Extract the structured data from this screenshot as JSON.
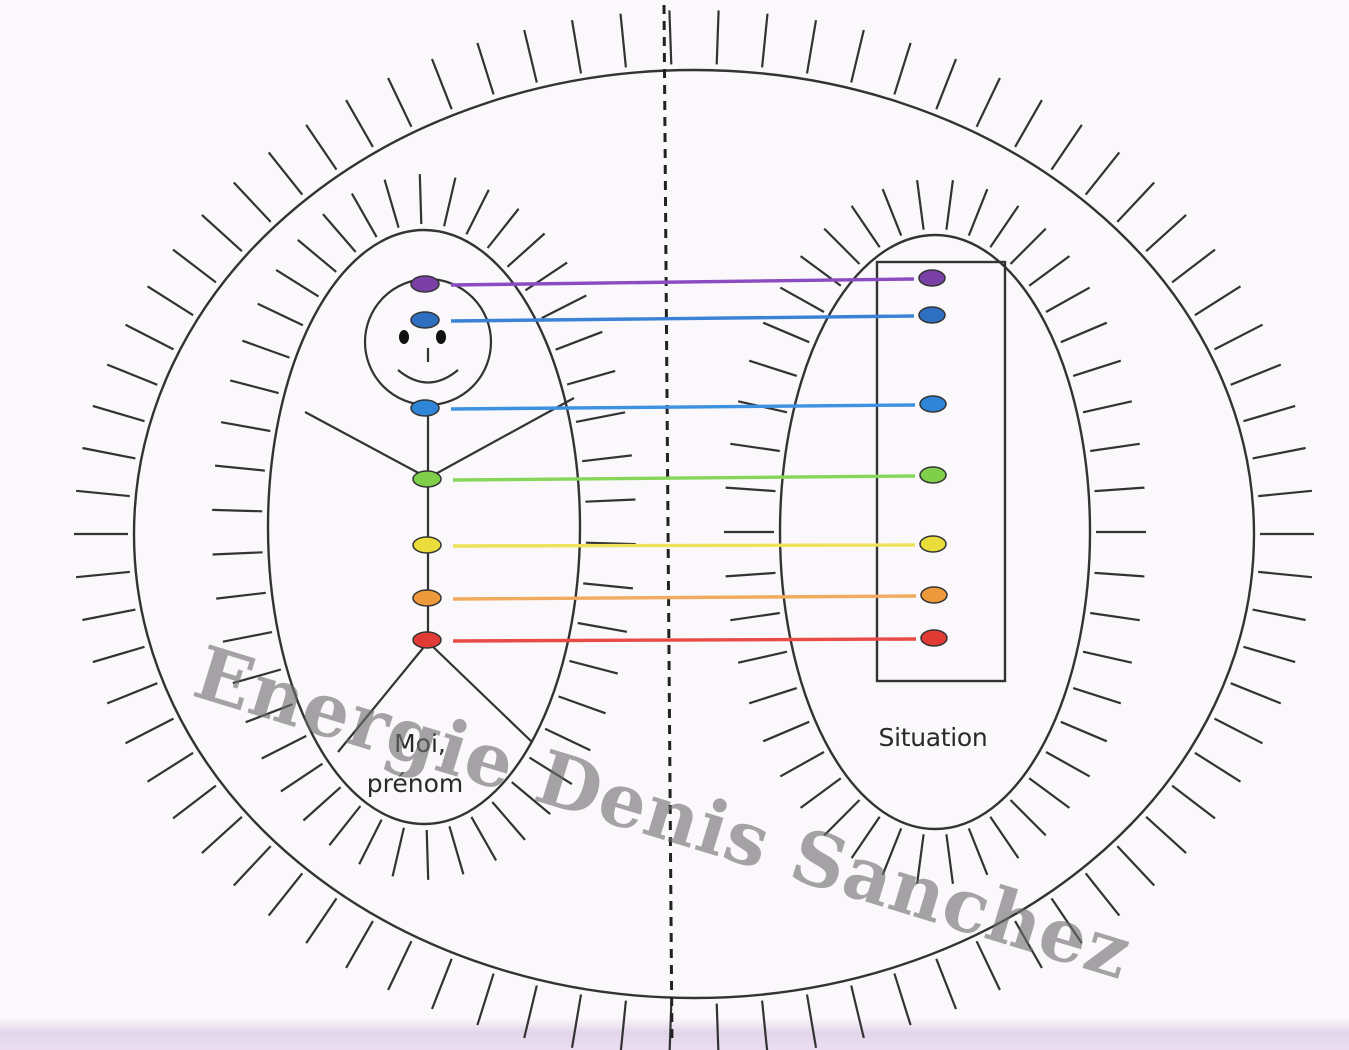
{
  "labels": {
    "left_line1": "Moi,",
    "left_line2": "prénom",
    "right": "Situation"
  },
  "watermark": "Energie Denis Sanchez",
  "chakra_colors": [
    "#7b3fa8",
    "#2f6fc2",
    "#2f86d9",
    "#7fcf4a",
    "#eadd3b",
    "#ee9a3c",
    "#e23b36"
  ],
  "line_colors": [
    "#8a4cc0",
    "#3b82d6",
    "#3c91e0",
    "#86d65a",
    "#efe25a",
    "#f0ab5e",
    "#e84a46"
  ]
}
